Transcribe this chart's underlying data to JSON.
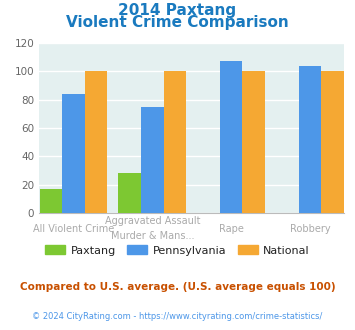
{
  "title_line1": "2014 Paxtang",
  "title_line2": "Violent Crime Comparison",
  "title_color": "#1a7abf",
  "cat_labels_line1": [
    "All Violent Crime",
    "Aggravated Assault",
    "Rape",
    "Robbery"
  ],
  "cat_labels_line2": [
    "",
    "Murder & Mans...",
    "",
    ""
  ],
  "paxtang": [
    17,
    28,
    0,
    0
  ],
  "pennsylvania": [
    84,
    75,
    107,
    104
  ],
  "national": [
    100,
    100,
    100,
    100
  ],
  "paxtang_color": "#7dc832",
  "pennsylvania_color": "#4d97e8",
  "national_color": "#f5a833",
  "ylim": [
    0,
    120
  ],
  "yticks": [
    0,
    20,
    40,
    60,
    80,
    100,
    120
  ],
  "plot_bg": "#e4f0f0",
  "footer_text": "Compared to U.S. average. (U.S. average equals 100)",
  "copyright_text": "© 2024 CityRating.com - https://www.cityrating.com/crime-statistics/",
  "footer_color": "#c85000",
  "copyright_color": "#4d97e8",
  "legend_labels": [
    "Paxtang",
    "Pennsylvania",
    "National"
  ]
}
